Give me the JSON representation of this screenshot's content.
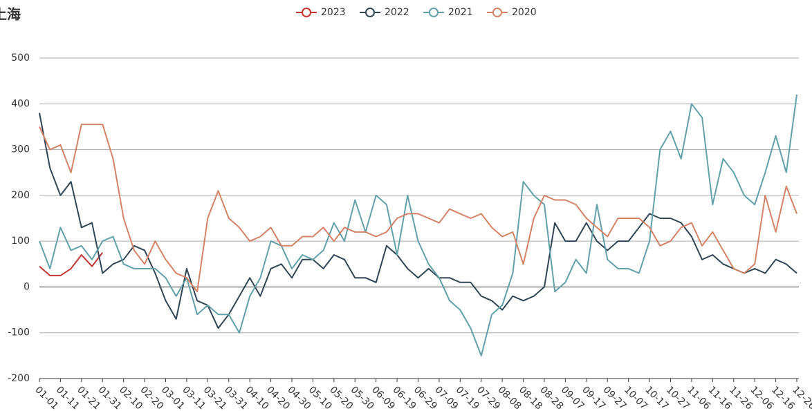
{
  "chart_data": {
    "type": "line",
    "title": "上海",
    "categories": [
      "01-01",
      null,
      "01-11",
      null,
      "01-21",
      null,
      "01-31",
      null,
      "02-10",
      null,
      "02-20",
      null,
      "03-01",
      null,
      "03-11",
      null,
      "03-21",
      null,
      "03-31",
      null,
      "04-10",
      null,
      "04-20",
      null,
      "04-30",
      null,
      "05-10",
      null,
      "05-20",
      null,
      "05-30",
      null,
      "06-09",
      null,
      "06-19",
      null,
      "06-29",
      null,
      "07-09",
      null,
      "07-19",
      null,
      "07-29",
      null,
      "08-08",
      null,
      "08-18",
      null,
      "08-28",
      null,
      "09-07",
      null,
      "09-17",
      null,
      "09-27",
      null,
      "10-07",
      null,
      "10-17",
      null,
      "10-27",
      null,
      "11-06",
      null,
      "11-16",
      null,
      "11-26",
      null,
      "12-06",
      null,
      "12-16",
      null,
      "12-26"
    ],
    "series": [
      {
        "name": "2023",
        "color": "#c23531",
        "values": [
          45,
          25,
          25,
          40,
          70,
          45,
          75,
          null,
          null,
          null,
          null,
          null,
          null,
          null,
          null,
          null,
          null,
          null,
          null,
          null,
          null,
          null,
          null,
          null,
          null,
          null,
          null,
          null,
          null,
          null,
          null,
          null,
          null,
          null,
          null,
          null,
          null,
          null,
          null,
          null,
          null,
          null,
          null,
          null,
          null,
          null,
          null,
          null,
          null,
          null,
          null,
          null,
          null,
          null,
          null,
          null,
          null,
          null,
          null,
          null,
          null,
          null,
          null,
          null,
          null,
          null,
          null,
          null,
          null,
          null,
          null,
          null,
          null
        ]
      },
      {
        "name": "2022",
        "color": "#2f4554",
        "values": [
          380,
          260,
          200,
          230,
          130,
          140,
          30,
          50,
          60,
          90,
          80,
          30,
          -30,
          -70,
          40,
          -30,
          -40,
          -90,
          -60,
          -20,
          20,
          -20,
          40,
          50,
          20,
          60,
          60,
          40,
          70,
          60,
          20,
          20,
          10,
          90,
          70,
          40,
          20,
          40,
          20,
          20,
          10,
          10,
          -20,
          -30,
          -50,
          -20,
          -30,
          -20,
          0,
          140,
          100,
          100,
          140,
          100,
          80,
          100,
          100,
          130,
          160,
          150,
          150,
          140,
          110,
          60,
          70,
          50,
          40,
          30,
          40,
          30,
          60,
          50,
          30
        ]
      },
      {
        "name": "2021",
        "color": "#61a0a8",
        "values": [
          100,
          40,
          130,
          80,
          90,
          60,
          100,
          110,
          50,
          40,
          40,
          40,
          20,
          -20,
          20,
          -60,
          -40,
          -60,
          -60,
          -100,
          -20,
          20,
          100,
          90,
          40,
          70,
          60,
          80,
          140,
          100,
          190,
          120,
          200,
          180,
          70,
          200,
          100,
          50,
          20,
          -30,
          -50,
          -90,
          -150,
          -60,
          -40,
          30,
          230,
          200,
          180,
          -10,
          10,
          60,
          30,
          180,
          60,
          40,
          40,
          30,
          100,
          300,
          340,
          280,
          400,
          370,
          180,
          280,
          250,
          200,
          180,
          250,
          330,
          250,
          420
        ]
      },
      {
        "name": "2020",
        "color": "#d48265",
        "values": [
          350,
          300,
          310,
          250,
          355,
          355,
          355,
          280,
          150,
          80,
          50,
          100,
          60,
          30,
          20,
          -10,
          150,
          210,
          150,
          130,
          100,
          110,
          130,
          90,
          90,
          110,
          110,
          130,
          100,
          130,
          120,
          120,
          110,
          120,
          150,
          160,
          160,
          150,
          140,
          170,
          160,
          150,
          160,
          130,
          110,
          120,
          50,
          150,
          200,
          190,
          190,
          180,
          150,
          130,
          110,
          150,
          150,
          150,
          130,
          90,
          100,
          130,
          140,
          90,
          120,
          80,
          40,
          30,
          50,
          200,
          120,
          220,
          160
        ]
      }
    ],
    "ylim": [
      -200,
      500
    ],
    "yticks": [
      -200,
      -100,
      0,
      100,
      200,
      300,
      400,
      500
    ],
    "grid": true
  }
}
